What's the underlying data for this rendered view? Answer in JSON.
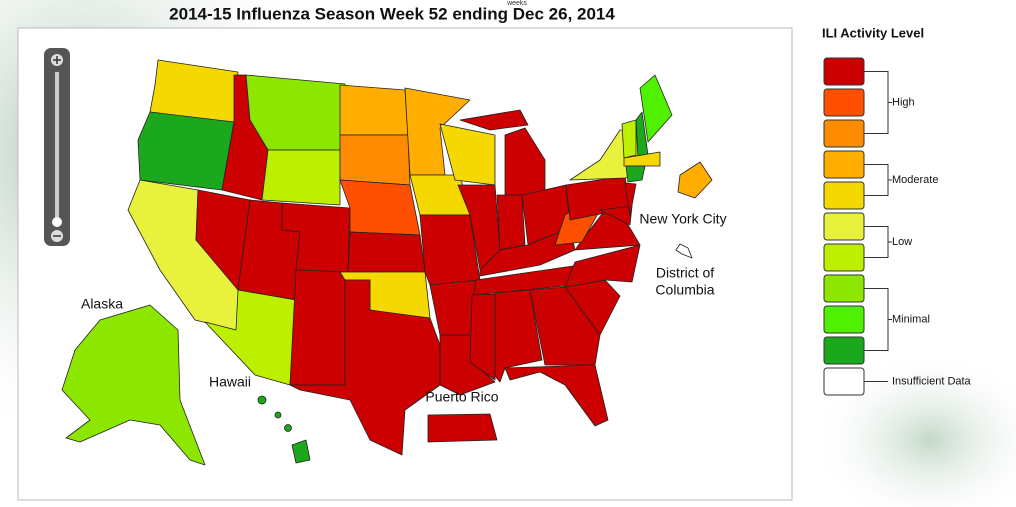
{
  "header": {
    "title": "2014-15  Influenza Season Week  52 ending Dec 26, 2014",
    "subtitle": "weeks"
  },
  "map": {
    "labels": [
      "New York City",
      "District of",
      "Columbia",
      "Alaska",
      "Hawaii",
      "Puerto Rico"
    ]
  },
  "legend": {
    "title": "ILI Activity Level",
    "levels": [
      "#cc0000",
      "#ff4f00",
      "#ff8c00",
      "#ffae00",
      "#f5d800",
      "#e8f23c",
      "#bdf000",
      "#8ce600",
      "#4ff000",
      "#1ca81c",
      "#ffffff"
    ],
    "groups": [
      {
        "label": "High",
        "from": 0,
        "to": 2
      },
      {
        "label": "Moderate",
        "from": 3,
        "to": 4
      },
      {
        "label": "Low",
        "from": 5,
        "to": 6
      },
      {
        "label": "Minimal",
        "from": 7,
        "to": 9
      },
      {
        "label": "Insufficient Data",
        "from": 10,
        "to": 10
      }
    ]
  }
}
